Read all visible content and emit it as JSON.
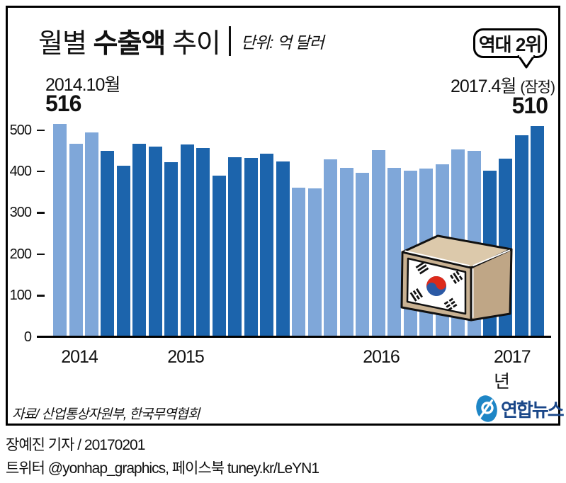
{
  "header": {
    "title_pre": "월별",
    "title_em": "수출액",
    "title_post": "추이",
    "unit_label": "단위: 억 달러"
  },
  "badge": {
    "label": "역대 2위"
  },
  "annotations": {
    "left": {
      "date": "2014.10월",
      "value": "516"
    },
    "right": {
      "date": "2017.4월",
      "note": "(잠정)",
      "value": "510"
    }
  },
  "chart_data": {
    "type": "bar",
    "title": "월별 수출액 추이",
    "unit": "억 달러",
    "ylim": [
      0,
      500
    ],
    "yticks": [
      0,
      100,
      200,
      300,
      400,
      500
    ],
    "grid": false,
    "x_groups": [
      "2014",
      "2015",
      "2016",
      "2017년"
    ],
    "series": [
      {
        "name": "2014",
        "color": "#7fa7d9",
        "months": [
          "2014.10",
          "2014.11",
          "2014.12"
        ],
        "values": [
          516,
          467,
          495
        ]
      },
      {
        "name": "2015",
        "color": "#1c64ac",
        "months": [
          "2015.1",
          "2015.2",
          "2015.3",
          "2015.4",
          "2015.5",
          "2015.6",
          "2015.7",
          "2015.8",
          "2015.9",
          "2015.10",
          "2015.11",
          "2015.12"
        ],
        "values": [
          451,
          415,
          467,
          461,
          423,
          466,
          457,
          391,
          435,
          434,
          443,
          424
        ]
      },
      {
        "name": "2016",
        "color": "#7fa7d9",
        "months": [
          "2016.1",
          "2016.2",
          "2016.3",
          "2016.4",
          "2016.5",
          "2016.6",
          "2016.7",
          "2016.8",
          "2016.9",
          "2016.10",
          "2016.11",
          "2016.12"
        ],
        "values": [
          362,
          359,
          430,
          410,
          397,
          452,
          409,
          402,
          408,
          418,
          453,
          451
        ]
      },
      {
        "name": "2017",
        "color": "#1c64ac",
        "months": [
          "2017.1",
          "2017.2",
          "2017.3",
          "2017.4"
        ],
        "values": [
          403,
          431,
          488,
          510
        ]
      }
    ]
  },
  "footer": {
    "source": "자료/ 산업통상자원부, 한국무역협회",
    "logo_text": "연합뉴스"
  },
  "byline": {
    "line1": "장예진 기자 / 20170201",
    "line2": "트위터 @yonhap_graphics, 페이스북 tuney.kr/LeYN1"
  },
  "colors": {
    "bar_light": "#7fa7d9",
    "bar_dark": "#1c64ac",
    "logo_blue": "#1e86c6",
    "logo_navy": "#1a4789",
    "box_tan": "#c9b293",
    "box_tan_light": "#dcc9ab",
    "box_tan_dark": "#bfa686",
    "flag_red": "#dd2a1b",
    "flag_blue": "#2b59a5"
  }
}
